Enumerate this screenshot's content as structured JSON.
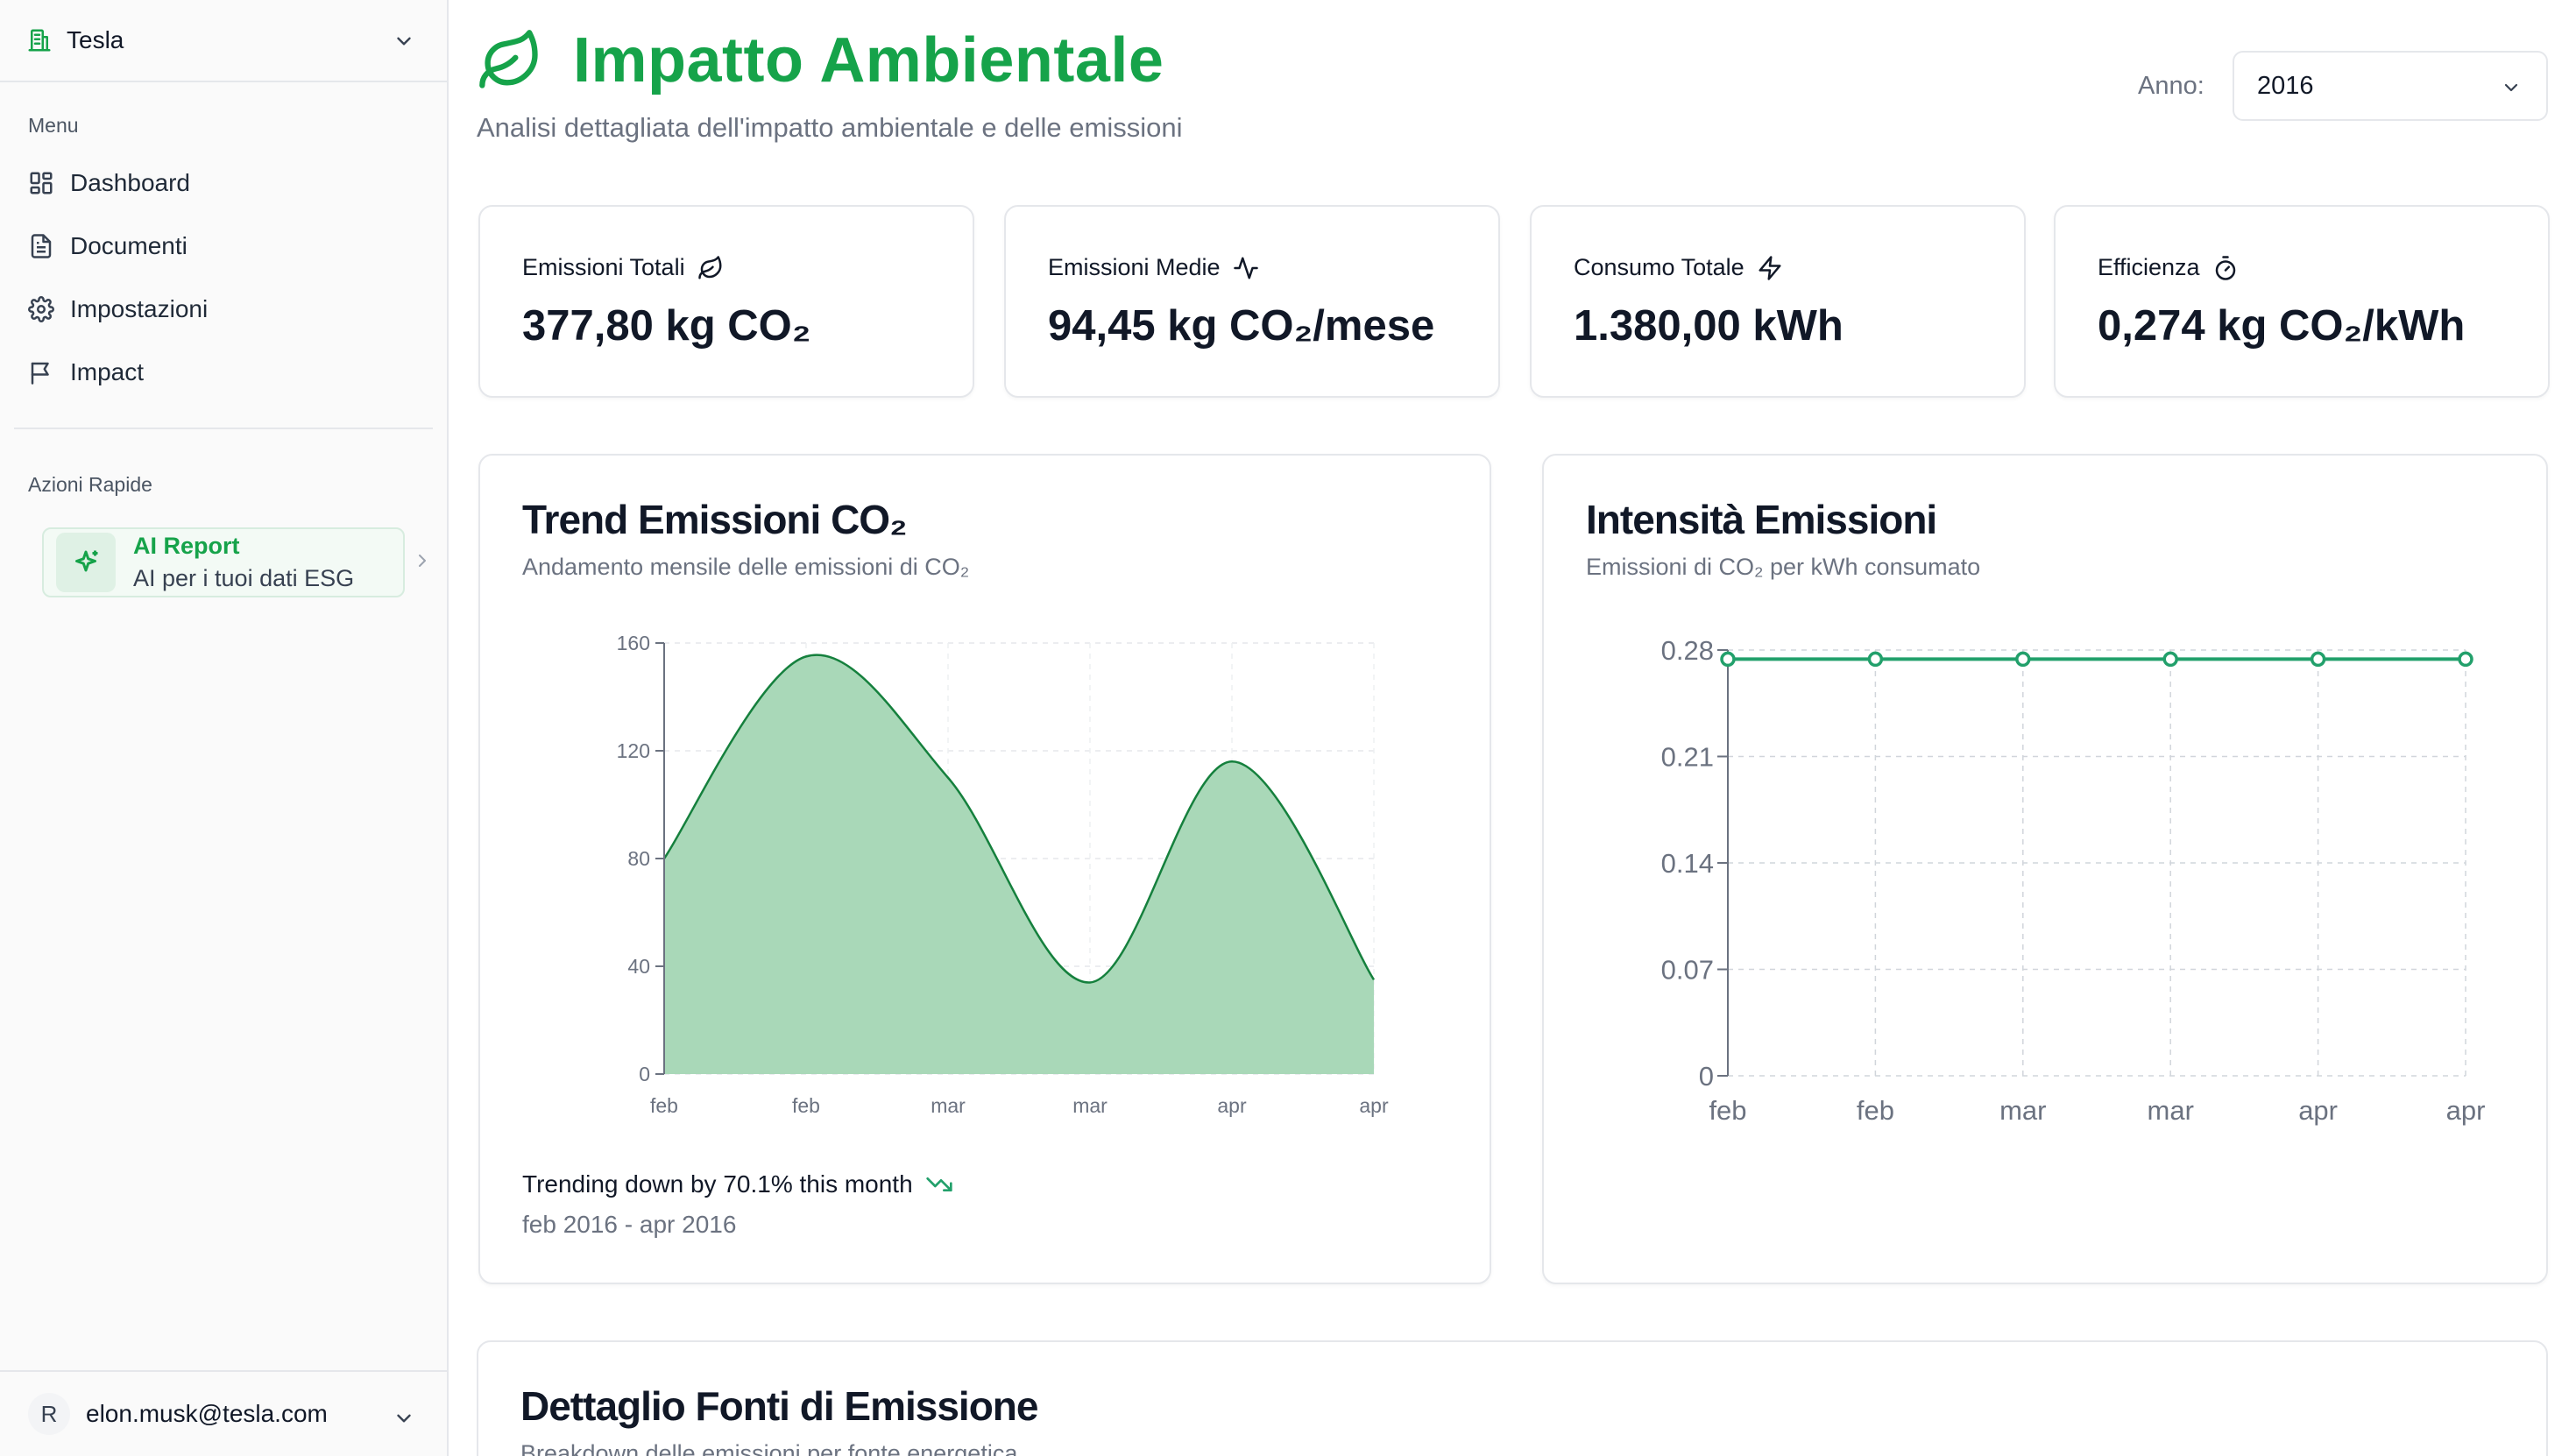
{
  "sidebar": {
    "org_name": "Tesla",
    "menu_label": "Menu",
    "items": [
      {
        "label": "Dashboard",
        "icon": "dashboard-icon"
      },
      {
        "label": "Documenti",
        "icon": "document-icon"
      },
      {
        "label": "Impostazioni",
        "icon": "gear-icon"
      },
      {
        "label": "Impact",
        "icon": "flag-icon"
      }
    ],
    "quick_label": "Azioni Rapide",
    "ai_card": {
      "title": "AI Report",
      "subtitle": "AI per i tuoi dati ESG"
    },
    "user": {
      "initial": "R",
      "email": "elon.musk@tesla.com"
    }
  },
  "header": {
    "title": "Impatto Ambientale",
    "subtitle": "Analisi dettagliata dell'impatto ambientale e delle emissioni",
    "year_label": "Anno:",
    "year_value": "2016"
  },
  "stats": [
    {
      "label": "Emissioni Totali",
      "icon": "leaf-icon",
      "value": "377,80 kg CO₂"
    },
    {
      "label": "Emissioni Medie",
      "icon": "activity-icon",
      "value": "94,45 kg CO₂/mese"
    },
    {
      "label": "Consumo Totale",
      "icon": "bolt-icon",
      "value": "1.380,00 kWh"
    },
    {
      "label": "Efficienza",
      "icon": "timer-icon",
      "value": "0,274 kg CO₂/kWh"
    }
  ],
  "trend_card": {
    "title": "Trend Emissioni CO₂",
    "subtitle": "Andamento mensile delle emissioni di CO₂",
    "trend_text": "Trending down by 70.1% this month",
    "range_text": "feb 2016 - apr 2016"
  },
  "intensity_card": {
    "title": "Intensità Emissioni",
    "subtitle": "Emissioni di CO₂ per kWh consumato"
  },
  "bottom_card": {
    "title": "Dettaglio Fonti di Emissione",
    "subtitle": "Breakdown delle emissioni per fonte energetica"
  },
  "colors": {
    "accent": "#16a34a",
    "area_fill": "#a9d8b8",
    "area_stroke": "#15803d",
    "line": "#22a06b"
  },
  "chart_data": [
    {
      "type": "area",
      "title": "Trend Emissioni CO₂",
      "categories": [
        "feb",
        "feb",
        "mar",
        "mar",
        "apr",
        "apr"
      ],
      "values": [
        80,
        155,
        110,
        34,
        116,
        35
      ],
      "ylim": [
        0,
        160
      ],
      "yticks": [
        0,
        40,
        80,
        120,
        160
      ],
      "xlabel": "",
      "ylabel": "",
      "grid": true
    },
    {
      "type": "line",
      "title": "Intensità Emissioni",
      "categories": [
        "feb",
        "feb",
        "mar",
        "mar",
        "apr",
        "apr"
      ],
      "values": [
        0.274,
        0.274,
        0.274,
        0.274,
        0.274,
        0.274
      ],
      "ylim": [
        0,
        0.28
      ],
      "yticks": [
        "0",
        "0.07",
        "0.14",
        "0.21",
        "0.28"
      ],
      "xlabel": "",
      "ylabel": "",
      "grid": true
    }
  ]
}
